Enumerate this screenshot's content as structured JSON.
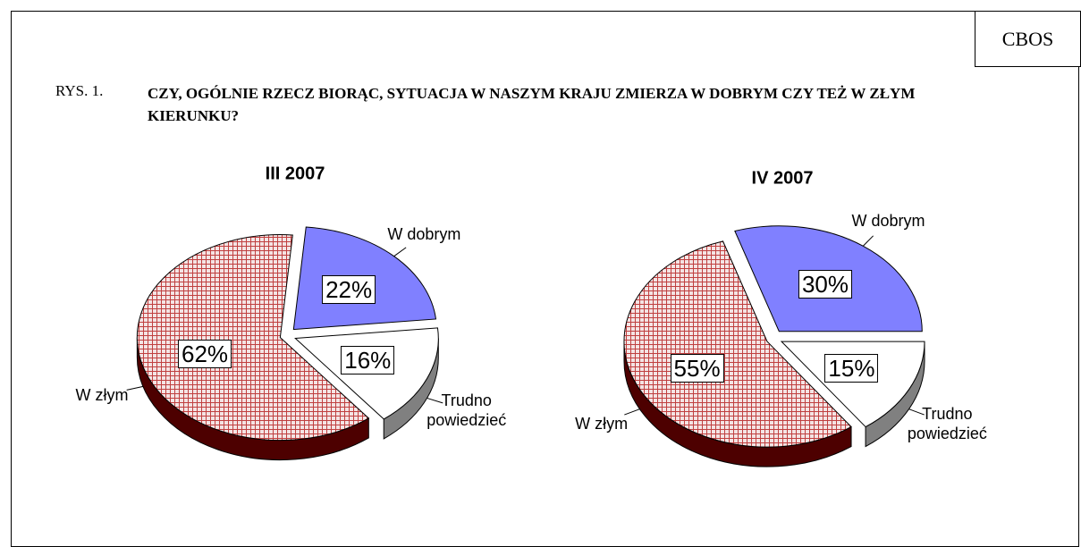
{
  "header": {
    "source": "CBOS",
    "figure": "RYS. 1.",
    "title": "CZY, OGÓLNIE RZECZ BIORĄC, SYTUACJA W NASZYM KRAJU ZMIERZA W DOBRYM CZY TEŻ W ZŁYM KIERUNKU?"
  },
  "chart_data": [
    {
      "type": "pie",
      "title": "III 2007",
      "categories": [
        "W dobrym",
        "Trudno powiedzieć",
        "W złym"
      ],
      "values": [
        22,
        16,
        62
      ],
      "value_labels": [
        "22%",
        "16%",
        "62%"
      ],
      "colors": [
        "#8080ff",
        "#ffffff",
        "#e8c8c8"
      ]
    },
    {
      "type": "pie",
      "title": "IV 2007",
      "categories": [
        "W dobrym",
        "Trudno powiedzieć",
        "W złym"
      ],
      "values": [
        30,
        15,
        55
      ],
      "value_labels": [
        "30%",
        "15%",
        "55%"
      ],
      "colors": [
        "#8080ff",
        "#ffffff",
        "#e8c8c8"
      ]
    }
  ]
}
